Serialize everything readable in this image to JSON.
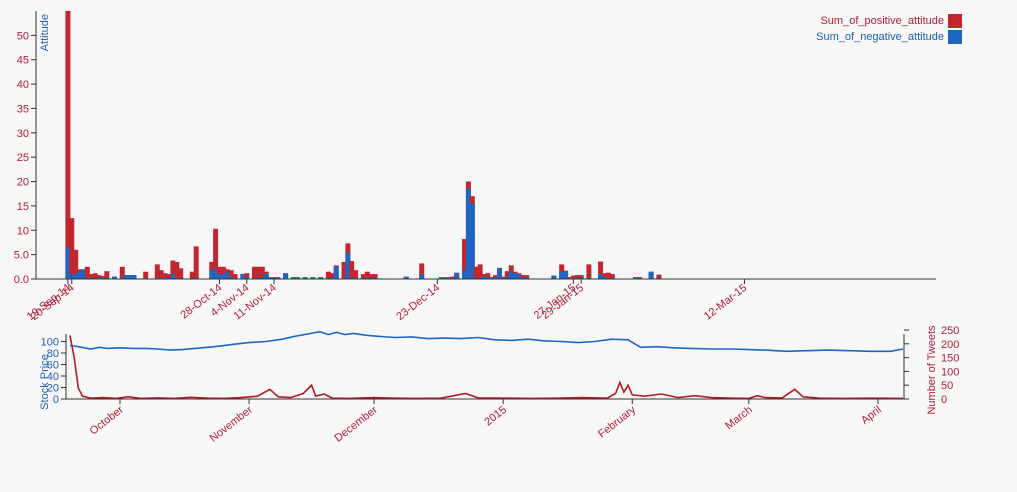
{
  "colors": {
    "positive": "#c4262e",
    "negative": "#1e66c4",
    "price_line": "#1e66c4",
    "tweets_line": "#b01e22",
    "tick_red": "#b01e3a",
    "tick_blue": "#1f5fb4"
  },
  "chart_data": [
    {
      "type": "bar",
      "stacked": true,
      "ylabel": "Attitude",
      "ylim": [
        0,
        55
      ],
      "yticks": [
        "0.0",
        "5.0",
        "10",
        "15",
        "20",
        "25",
        "30",
        "35",
        "40",
        "45",
        "50"
      ],
      "x_domain": [
        "2014-09-18",
        "2015-04-30"
      ],
      "x_ticks": [
        {
          "date": "2014-09-19",
          "label": "19-Sep-14"
        },
        {
          "date": "2014-09-20",
          "label": "20-Sep-14"
        },
        {
          "date": "2014-10-28",
          "label": "28-Oct-14"
        },
        {
          "date": "2014-11-04",
          "label": "4-Nov-14"
        },
        {
          "date": "2014-11-11",
          "label": "11-Nov-14"
        },
        {
          "date": "2014-12-23",
          "label": "23-Dec-14"
        },
        {
          "date": "2015-01-27",
          "label": "27-Jan-15"
        },
        {
          "date": "2015-01-29",
          "label": "29-Jan-15"
        },
        {
          "date": "2015-03-12",
          "label": "12-Mar-15"
        }
      ],
      "legend": {
        "position": "top-right",
        "entries": [
          "Sum_of_positive_attitude",
          "Sum_of_negative_attitude"
        ]
      },
      "series": [
        {
          "name": "Sum_of_positive_attitude",
          "color": "#c4262e"
        },
        {
          "name": "Sum_of_negative_attitude",
          "color": "#1e66c4"
        }
      ],
      "points": [
        [
          "2014-09-19",
          55,
          6.5
        ],
        [
          "2014-09-20",
          12.5,
          1
        ],
        [
          "2014-09-21",
          6,
          1
        ],
        [
          "2014-09-22",
          2,
          1.5
        ],
        [
          "2014-09-23",
          2,
          2
        ],
        [
          "2014-09-24",
          2.5,
          0.3
        ],
        [
          "2014-09-25",
          1,
          0.2
        ],
        [
          "2014-09-26",
          1.2,
          0.2
        ],
        [
          "2014-09-27",
          0.8,
          0.2
        ],
        [
          "2014-09-28",
          0.6,
          0.2
        ],
        [
          "2014-09-29",
          1.6,
          0.2
        ],
        [
          "2014-10-01",
          0.5,
          0.5
        ],
        [
          "2014-10-03",
          2.5,
          0.3
        ],
        [
          "2014-10-04",
          0.8,
          0.8
        ],
        [
          "2014-10-05",
          0.8,
          0.8
        ],
        [
          "2014-10-06",
          0.8,
          0.8
        ],
        [
          "2014-10-09",
          1.5,
          0.2
        ],
        [
          "2014-10-12",
          3,
          0.2
        ],
        [
          "2014-10-13",
          1.8,
          0.2
        ],
        [
          "2014-10-14",
          1.2,
          0.2
        ],
        [
          "2014-10-15",
          1,
          0.2
        ],
        [
          "2014-10-16",
          3.8,
          1
        ],
        [
          "2014-10-17",
          3.5,
          0.2
        ],
        [
          "2014-10-18",
          2.2,
          0.2
        ],
        [
          "2014-10-21",
          1.5,
          0.2
        ],
        [
          "2014-10-22",
          6.7,
          0.2
        ],
        [
          "2014-10-26",
          3.5,
          1.8
        ],
        [
          "2014-10-27",
          10.3,
          2
        ],
        [
          "2014-10-28",
          2.5,
          1
        ],
        [
          "2014-10-29",
          2.5,
          1
        ],
        [
          "2014-10-30",
          2,
          1.5
        ],
        [
          "2014-10-31",
          1.8,
          0.5
        ],
        [
          "2014-11-01",
          1,
          0.2
        ],
        [
          "2014-11-03",
          1,
          1
        ],
        [
          "2014-11-04",
          1.2,
          0.3
        ],
        [
          "2014-11-06",
          2.5,
          0.2
        ],
        [
          "2014-11-07",
          2.5,
          0.2
        ],
        [
          "2014-11-08",
          2.5,
          0.2
        ],
        [
          "2014-11-09",
          1.5,
          1
        ],
        [
          "2014-11-10",
          0.4,
          0.2
        ],
        [
          "2014-11-11",
          0.4,
          0.2
        ],
        [
          "2014-11-12",
          0.4,
          0.2
        ],
        [
          "2014-11-14",
          1.2,
          1.2
        ],
        [
          "2014-11-16",
          0.4,
          0.2
        ],
        [
          "2014-11-17",
          0.4,
          0.2
        ],
        [
          "2014-11-19",
          0.4,
          0.2
        ],
        [
          "2014-11-21",
          0.4,
          0.2
        ],
        [
          "2014-11-23",
          0.4,
          0.2
        ],
        [
          "2014-11-25",
          1.5,
          0.2
        ],
        [
          "2014-11-26",
          1.2,
          0.2
        ],
        [
          "2014-11-27",
          2.8,
          2.5
        ],
        [
          "2014-11-29",
          3.5,
          0.2
        ],
        [
          "2014-11-30",
          7.3,
          5.3
        ],
        [
          "2014-12-01",
          3.7,
          0.2
        ],
        [
          "2014-12-02",
          1.8,
          0.2
        ],
        [
          "2014-12-04",
          1,
          0.2
        ],
        [
          "2014-12-05",
          1.5,
          0.2
        ],
        [
          "2014-12-06",
          1,
          0.2
        ],
        [
          "2014-12-07",
          1,
          0.2
        ],
        [
          "2014-12-15",
          0.5,
          0.5
        ],
        [
          "2014-12-19",
          3.2,
          1
        ],
        [
          "2014-12-24",
          0.4,
          0.2
        ],
        [
          "2014-12-25",
          0.4,
          0.2
        ],
        [
          "2014-12-26",
          0.4,
          0.2
        ],
        [
          "2014-12-27",
          0.5,
          0.2
        ],
        [
          "2014-12-28",
          1.3,
          1.2
        ],
        [
          "2014-12-30",
          8.2,
          1.8
        ],
        [
          "2014-12-31",
          20,
          18.5
        ],
        [
          "2015-01-01",
          17,
          15.5
        ],
        [
          "2015-01-02",
          2.5,
          0.2
        ],
        [
          "2015-01-03",
          3,
          0.2
        ],
        [
          "2015-01-04",
          1,
          0.5
        ],
        [
          "2015-01-05",
          1.2,
          0.4
        ],
        [
          "2015-01-06",
          0.4,
          0.2
        ],
        [
          "2015-01-07",
          0.8,
          0.3
        ],
        [
          "2015-01-08",
          2.3,
          2.2
        ],
        [
          "2015-01-09",
          0.5,
          0.2
        ],
        [
          "2015-01-10",
          1.6,
          0.5
        ],
        [
          "2015-01-11",
          2.8,
          1.6
        ],
        [
          "2015-01-12",
          1.5,
          1.3
        ],
        [
          "2015-01-13",
          1.2,
          1
        ],
        [
          "2015-01-14",
          0.8,
          0.3
        ],
        [
          "2015-01-15",
          0.8,
          0.3
        ],
        [
          "2015-01-22",
          0.7,
          0.7
        ],
        [
          "2015-01-24",
          3,
          1.5
        ],
        [
          "2015-01-25",
          1.7,
          1.5
        ],
        [
          "2015-01-26",
          0.4,
          0.2
        ],
        [
          "2015-01-27",
          0.7,
          0.2
        ],
        [
          "2015-01-28",
          0.8,
          0.2
        ],
        [
          "2015-01-29",
          0.8,
          0.2
        ],
        [
          "2015-01-31",
          3,
          0.2
        ],
        [
          "2015-02-03",
          3.6,
          1
        ],
        [
          "2015-02-04",
          1.2,
          0.5
        ],
        [
          "2015-02-05",
          1.3,
          0.2
        ],
        [
          "2015-02-06",
          1,
          0.2
        ],
        [
          "2015-02-12",
          0.4,
          0.2
        ],
        [
          "2015-02-13",
          0.4,
          0.2
        ],
        [
          "2015-02-16",
          1.5,
          1.5
        ],
        [
          "2015-02-18",
          0.9,
          0.2
        ]
      ]
    },
    {
      "type": "line",
      "ylabel": "Stock Price",
      "y2label": "Number of Tweets",
      "ylim": [
        0,
        120
      ],
      "yticks": [
        "0",
        "20",
        "40",
        "60",
        "80",
        "100"
      ],
      "y2lim": [
        0,
        250
      ],
      "y2ticks": [
        "0",
        "50",
        "100",
        "150",
        "200",
        "250"
      ],
      "x_domain": [
        "2014-09-19",
        "2015-04-07"
      ],
      "x_ticks": [
        {
          "date": "2014-10-01",
          "label": "October"
        },
        {
          "date": "2014-11-01",
          "label": "November"
        },
        {
          "date": "2014-12-01",
          "label": "December"
        },
        {
          "date": "2015-01-01",
          "label": "2015"
        },
        {
          "date": "2015-02-01",
          "label": "February"
        },
        {
          "date": "2015-03-01",
          "label": "March"
        },
        {
          "date": "2015-04-01",
          "label": "April"
        }
      ],
      "series": [
        {
          "name": "Stock Price",
          "axis": "left",
          "color": "#1e66c4",
          "points": [
            [
              "2014-09-19",
              93
            ],
            [
              "2014-09-21",
              91
            ],
            [
              "2014-09-24",
              87
            ],
            [
              "2014-09-26",
              90
            ],
            [
              "2014-09-28",
              88
            ],
            [
              "2014-10-01",
              89
            ],
            [
              "2014-10-04",
              88
            ],
            [
              "2014-10-07",
              88
            ],
            [
              "2014-10-10",
              87
            ],
            [
              "2014-10-13",
              85
            ],
            [
              "2014-10-16",
              86
            ],
            [
              "2014-10-19",
              88
            ],
            [
              "2014-10-22",
              90
            ],
            [
              "2014-10-25",
              92
            ],
            [
              "2014-10-28",
              95
            ],
            [
              "2014-11-01",
              98
            ],
            [
              "2014-11-05",
              100
            ],
            [
              "2014-11-09",
              104
            ],
            [
              "2014-11-12",
              109
            ],
            [
              "2014-11-15",
              113
            ],
            [
              "2014-11-18",
              117
            ],
            [
              "2014-11-20",
              112
            ],
            [
              "2014-11-22",
              116
            ],
            [
              "2014-11-24",
              112
            ],
            [
              "2014-11-26",
              114
            ],
            [
              "2014-11-29",
              111
            ],
            [
              "2014-12-02",
              109
            ],
            [
              "2014-12-06",
              107
            ],
            [
              "2014-12-10",
              108
            ],
            [
              "2014-12-14",
              105
            ],
            [
              "2014-12-18",
              106
            ],
            [
              "2014-12-22",
              105
            ],
            [
              "2014-12-26",
              107
            ],
            [
              "2014-12-30",
              103
            ],
            [
              "2015-01-03",
              102
            ],
            [
              "2015-01-07",
              104
            ],
            [
              "2015-01-11",
              101
            ],
            [
              "2015-01-15",
              100
            ],
            [
              "2015-01-19",
              98
            ],
            [
              "2015-01-23",
              100
            ],
            [
              "2015-01-27",
              104
            ],
            [
              "2015-01-31",
              103
            ],
            [
              "2015-02-03",
              90
            ],
            [
              "2015-02-07",
              91
            ],
            [
              "2015-02-11",
              89
            ],
            [
              "2015-02-15",
              88
            ],
            [
              "2015-02-20",
              87
            ],
            [
              "2015-02-25",
              87
            ],
            [
              "2015-03-01",
              86
            ],
            [
              "2015-03-05",
              85
            ],
            [
              "2015-03-10",
              83
            ],
            [
              "2015-03-15",
              84
            ],
            [
              "2015-03-20",
              85
            ],
            [
              "2015-03-25",
              84
            ],
            [
              "2015-03-30",
              83
            ],
            [
              "2015-04-04",
              83
            ],
            [
              "2015-04-07",
              87
            ]
          ]
        },
        {
          "name": "Number of Tweets",
          "axis": "right",
          "color": "#b01e22",
          "points": [
            [
              "2014-09-19",
              230
            ],
            [
              "2014-09-20",
              150
            ],
            [
              "2014-09-21",
              40
            ],
            [
              "2014-09-22",
              10
            ],
            [
              "2014-09-24",
              3
            ],
            [
              "2014-09-27",
              5
            ],
            [
              "2014-09-30",
              2
            ],
            [
              "2014-10-03",
              8
            ],
            [
              "2014-10-06",
              2
            ],
            [
              "2014-10-10",
              4
            ],
            [
              "2014-10-14",
              2
            ],
            [
              "2014-10-18",
              6
            ],
            [
              "2014-10-22",
              3
            ],
            [
              "2014-10-26",
              2
            ],
            [
              "2014-10-30",
              5
            ],
            [
              "2014-11-03",
              10
            ],
            [
              "2014-11-06",
              35
            ],
            [
              "2014-11-08",
              8
            ],
            [
              "2014-11-11",
              5
            ],
            [
              "2014-11-14",
              20
            ],
            [
              "2014-11-16",
              50
            ],
            [
              "2014-11-17",
              10
            ],
            [
              "2014-11-19",
              18
            ],
            [
              "2014-11-21",
              3
            ],
            [
              "2014-11-25",
              2
            ],
            [
              "2014-12-01",
              5
            ],
            [
              "2014-12-06",
              3
            ],
            [
              "2014-12-11",
              2
            ],
            [
              "2014-12-17",
              3
            ],
            [
              "2014-12-23",
              20
            ],
            [
              "2014-12-26",
              4
            ],
            [
              "2015-01-02",
              3
            ],
            [
              "2015-01-08",
              2
            ],
            [
              "2015-01-14",
              3
            ],
            [
              "2015-01-20",
              5
            ],
            [
              "2015-01-26",
              3
            ],
            [
              "2015-01-28",
              20
            ],
            [
              "2015-01-29",
              60
            ],
            [
              "2015-01-30",
              25
            ],
            [
              "2015-01-31",
              50
            ],
            [
              "2015-02-01",
              15
            ],
            [
              "2015-02-04",
              10
            ],
            [
              "2015-02-08",
              18
            ],
            [
              "2015-02-12",
              5
            ],
            [
              "2015-02-16",
              12
            ],
            [
              "2015-02-20",
              5
            ],
            [
              "2015-02-25",
              3
            ],
            [
              "2015-03-01",
              2
            ],
            [
              "2015-03-03",
              12
            ],
            [
              "2015-03-05",
              5
            ],
            [
              "2015-03-09",
              4
            ],
            [
              "2015-03-12",
              35
            ],
            [
              "2015-03-14",
              8
            ],
            [
              "2015-03-18",
              3
            ],
            [
              "2015-03-24",
              2
            ],
            [
              "2015-03-30",
              3
            ],
            [
              "2015-04-07",
              2
            ]
          ]
        }
      ]
    }
  ]
}
